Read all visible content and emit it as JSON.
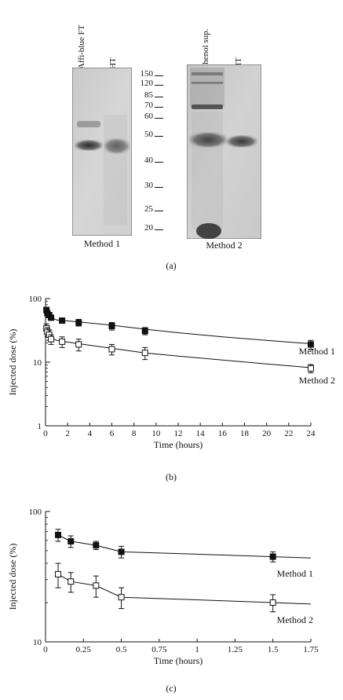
{
  "panel_a": {
    "gel1": {
      "lanes": [
        "Affi-blue FT",
        "HT"
      ],
      "caption": "Method 1"
    },
    "gel2": {
      "lanes": [
        "Phenol sup.",
        "HT"
      ],
      "caption": "Method 2"
    },
    "markers": [
      "150",
      "120",
      "85",
      "70",
      "60",
      "50",
      "40",
      "30",
      "25",
      "20"
    ],
    "label": "(a)"
  },
  "panel_b_label": "(b)",
  "panel_c_label": "(c)",
  "chart_data": [
    {
      "type": "scatter",
      "panel": "b",
      "xlabel": "Time (hours)",
      "ylabel": "Injected dose (%)",
      "xlim": [
        0,
        24
      ],
      "ylim": [
        1,
        100
      ],
      "yscale": "log",
      "xticks": [
        "0",
        "2",
        "4",
        "6",
        "8",
        "10",
        "12",
        "14",
        "16",
        "18",
        "20",
        "22",
        "24"
      ],
      "yticks": [
        "1",
        "10",
        "100"
      ],
      "series": [
        {
          "name": "Method 1",
          "marker": "filled-square",
          "x": [
            0.083,
            0.167,
            0.333,
            0.5,
            1.5,
            3,
            6,
            9,
            24
          ],
          "y": [
            66,
            59,
            55,
            50,
            45,
            42,
            37,
            31,
            19
          ],
          "err": [
            7,
            6,
            5,
            4,
            4,
            5,
            5,
            4,
            3
          ],
          "fit_x": [
            0.083,
            1,
            3,
            6,
            9,
            12,
            16,
            20,
            24
          ],
          "fit_y": [
            55,
            46,
            43,
            38,
            33,
            29,
            25,
            22,
            19.5
          ]
        },
        {
          "name": "Method 2",
          "marker": "open-square",
          "x": [
            0.083,
            0.167,
            0.333,
            0.5,
            1.5,
            3,
            6,
            9,
            24
          ],
          "y": [
            34,
            30,
            27,
            23,
            21,
            19,
            16,
            14,
            8
          ],
          "err": [
            6,
            5,
            5,
            4,
            4,
            4,
            3,
            3,
            1.2
          ],
          "fit_x": [
            0.083,
            1,
            3,
            6,
            9,
            12,
            16,
            20,
            24
          ],
          "fit_y": [
            27,
            22,
            19.5,
            16.5,
            14,
            12.5,
            10.8,
            9.4,
            8.2
          ]
        }
      ]
    },
    {
      "type": "scatter",
      "panel": "c",
      "xlabel": "Time (hours)",
      "ylabel": "Injected dose (%)",
      "xlim": [
        0,
        1.75
      ],
      "ylim": [
        10,
        100
      ],
      "yscale": "log",
      "xticks": [
        "0",
        "0.25",
        "0.5",
        "0.75",
        "1",
        "1.25",
        "1.5",
        "1.75"
      ],
      "yticks": [
        "10",
        "100"
      ],
      "series": [
        {
          "name": "Method 1",
          "marker": "filled-square",
          "x": [
            0.083,
            0.167,
            0.333,
            0.5,
            1.5
          ],
          "y": [
            66,
            59,
            55,
            49,
            45
          ],
          "err": [
            7,
            6,
            4,
            5,
            4
          ],
          "fit_x": [
            0.083,
            0.167,
            0.333,
            0.5,
            1.0,
            1.5,
            1.75
          ],
          "fit_y": [
            66,
            59,
            55,
            49,
            47,
            45,
            44
          ]
        },
        {
          "name": "Method 2",
          "marker": "open-square",
          "x": [
            0.083,
            0.167,
            0.333,
            0.5,
            1.5
          ],
          "y": [
            33,
            29,
            27,
            22,
            20
          ],
          "err": [
            7,
            5,
            5,
            4,
            3
          ],
          "fit_x": [
            0.083,
            0.167,
            0.333,
            0.5,
            1.0,
            1.5,
            1.75
          ],
          "fit_y": [
            33,
            29,
            27,
            22,
            21,
            20,
            19.5
          ]
        }
      ]
    }
  ]
}
